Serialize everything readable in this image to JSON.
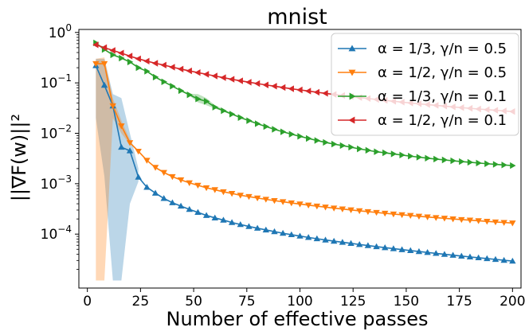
{
  "chart_data": {
    "type": "line",
    "title": "mnist",
    "xlabel": "Number of effective passes",
    "ylabel": "||∇F(w)||²",
    "yscale": "log",
    "xlim": [
      -4,
      204
    ],
    "ylim_exp": [
      -5.07,
      0.06
    ],
    "x_ticks": [
      0,
      25,
      50,
      75,
      100,
      125,
      150,
      175,
      200
    ],
    "x_tick_labels": [
      "0",
      "25",
      "50",
      "75",
      "100",
      "125",
      "150",
      "175",
      "200"
    ],
    "y_ticks": [
      0,
      -1,
      -2,
      -3,
      -4
    ],
    "y_tick_labels": [
      {
        "base": "10",
        "exp": "0"
      },
      {
        "base": "10",
        "exp": "−1"
      },
      {
        "base": "10",
        "exp": "−2"
      },
      {
        "base": "10",
        "exp": "−3"
      },
      {
        "base": "10",
        "exp": "−4"
      }
    ],
    "legend_position": "top-right",
    "series": [
      {
        "name": "α = 1/3, γ/n = 0.5",
        "color": "#1f77b4",
        "marker": "triangle-up",
        "x": [
          4,
          8,
          12,
          16,
          20,
          24,
          28,
          32,
          36,
          40,
          44,
          48,
          52,
          56,
          60,
          64,
          68,
          72,
          76,
          80,
          84,
          88,
          92,
          96,
          100,
          104,
          108,
          112,
          116,
          120,
          124,
          128,
          132,
          136,
          140,
          144,
          148,
          152,
          156,
          160,
          164,
          168,
          172,
          176,
          180,
          184,
          188,
          192,
          196,
          200
        ],
        "y": [
          0.22,
          0.09,
          0.035,
          0.0053,
          0.0045,
          0.00135,
          0.00085,
          0.00065,
          0.00051,
          0.00042,
          0.00036,
          0.00031,
          0.00027,
          0.000235,
          0.00021,
          0.00019,
          0.00017,
          0.000155,
          0.000142,
          0.000131,
          0.000121,
          0.000112,
          0.000104,
          9.75e-05,
          9.15e-05,
          8.6e-05,
          8.1e-05,
          7.65e-05,
          7.25e-05,
          6.9e-05,
          6.55e-05,
          6.23e-05,
          5.93e-05,
          5.65e-05,
          5.4e-05,
          5.16e-05,
          4.93e-05,
          4.72e-05,
          4.52e-05,
          4.33e-05,
          4.15e-05,
          3.98e-05,
          3.82e-05,
          3.67e-05,
          3.53e-05,
          3.4e-05,
          3.27e-05,
          3.15e-05,
          3.03e-05,
          2.92e-05
        ],
        "band": {
          "x": [
            4,
            8,
            12,
            16,
            20,
            24
          ],
          "lower": [
            0.02,
            0.0014,
            1.2e-05,
            1.2e-05,
            0.0004,
            0.0011
          ],
          "upper": [
            0.3,
            0.3,
            0.06,
            0.05,
            0.01,
            0.002
          ]
        }
      },
      {
        "name": "α = 1/2, γ/n = 0.5",
        "color": "#ff7f0e",
        "marker": "triangle-down",
        "x": [
          4,
          8,
          12,
          16,
          20,
          24,
          28,
          32,
          36,
          40,
          44,
          48,
          52,
          56,
          60,
          64,
          68,
          72,
          76,
          80,
          84,
          88,
          92,
          96,
          100,
          104,
          108,
          112,
          116,
          120,
          124,
          128,
          132,
          136,
          140,
          144,
          148,
          152,
          156,
          160,
          164,
          168,
          172,
          176,
          180,
          184,
          188,
          192,
          196,
          200
        ],
        "y": [
          0.24,
          0.24,
          0.035,
          0.014,
          0.0065,
          0.0044,
          0.0029,
          0.0021,
          0.00167,
          0.00138,
          0.00119,
          0.00104,
          0.00093,
          0.00083,
          0.00076,
          0.00069,
          0.00064,
          0.00059,
          0.000555,
          0.00052,
          0.00049,
          0.000462,
          0.000438,
          0.000415,
          0.000395,
          0.000376,
          0.000359,
          0.000343,
          0.000328,
          0.000315,
          0.000302,
          0.00029,
          0.000279,
          0.000269,
          0.000259,
          0.00025,
          0.000242,
          0.000234,
          0.000226,
          0.000219,
          0.000212,
          0.000206,
          0.0002,
          0.000194,
          0.000189,
          0.000184,
          0.000179,
          0.000174,
          0.00017,
          0.000166
        ],
        "band": {
          "x": [
            4,
            8,
            12,
            16,
            20
          ],
          "lower": [
            1.2e-05,
            1.2e-05,
            0.02,
            0.01,
            0.006
          ],
          "upper": [
            0.3,
            0.32,
            0.05,
            0.018,
            0.0075
          ]
        }
      },
      {
        "name": "α = 1/3, γ/n = 0.1",
        "color": "#2ca02c",
        "marker": "triangle-right",
        "x": [
          4,
          8,
          12,
          16,
          20,
          24,
          28,
          32,
          36,
          40,
          44,
          48,
          52,
          56,
          60,
          64,
          68,
          72,
          76,
          80,
          84,
          88,
          92,
          96,
          100,
          104,
          108,
          112,
          116,
          120,
          124,
          128,
          132,
          136,
          140,
          144,
          148,
          152,
          156,
          160,
          164,
          168,
          172,
          176,
          180,
          184,
          188,
          192,
          196,
          200
        ],
        "y": [
          0.62,
          0.46,
          0.36,
          0.31,
          0.26,
          0.2,
          0.17,
          0.13,
          0.105,
          0.086,
          0.07,
          0.058,
          0.048,
          0.043,
          0.033,
          0.028,
          0.024,
          0.0205,
          0.0178,
          0.0155,
          0.0136,
          0.012,
          0.0107,
          0.0096,
          0.0087,
          0.0079,
          0.0072,
          0.0066,
          0.0061,
          0.0057,
          0.0053,
          0.0049,
          0.0046,
          0.0043,
          0.0041,
          0.0039,
          0.0037,
          0.00352,
          0.00336,
          0.00321,
          0.00308,
          0.00296,
          0.00285,
          0.00275,
          0.00266,
          0.00257,
          0.00249,
          0.00242,
          0.00235,
          0.00229
        ],
        "band": {
          "x": [
            44,
            48,
            52,
            56,
            60,
            64,
            68
          ],
          "lower": [
            0.068,
            0.056,
            0.041,
            0.036,
            0.031,
            0.027,
            0.023
          ],
          "upper": [
            0.072,
            0.061,
            0.06,
            0.05,
            0.036,
            0.03,
            0.025
          ]
        }
      },
      {
        "name": "α = 1/2, γ/n = 0.1",
        "color": "#d62728",
        "marker": "triangle-left",
        "x": [
          4,
          8,
          12,
          16,
          20,
          24,
          28,
          32,
          36,
          40,
          44,
          48,
          52,
          56,
          60,
          64,
          68,
          72,
          76,
          80,
          84,
          88,
          92,
          96,
          100,
          104,
          108,
          112,
          116,
          120,
          124,
          128,
          132,
          136,
          140,
          144,
          148,
          152,
          156,
          160,
          164,
          168,
          172,
          176,
          180,
          184,
          188,
          192,
          196,
          200
        ],
        "y": [
          0.57,
          0.5,
          0.44,
          0.39,
          0.34,
          0.3,
          0.27,
          0.245,
          0.225,
          0.205,
          0.188,
          0.173,
          0.16,
          0.148,
          0.137,
          0.127,
          0.118,
          0.11,
          0.103,
          0.097,
          0.091,
          0.086,
          0.081,
          0.0765,
          0.0725,
          0.0688,
          0.0652,
          0.062,
          0.059,
          0.0562,
          0.0536,
          0.0512,
          0.049,
          0.0469,
          0.045,
          0.0432,
          0.0415,
          0.0399,
          0.0385,
          0.0371,
          0.0358,
          0.0346,
          0.0334,
          0.0323,
          0.0313,
          0.0303,
          0.0294,
          0.0286,
          0.0278,
          0.027
        ]
      }
    ]
  }
}
